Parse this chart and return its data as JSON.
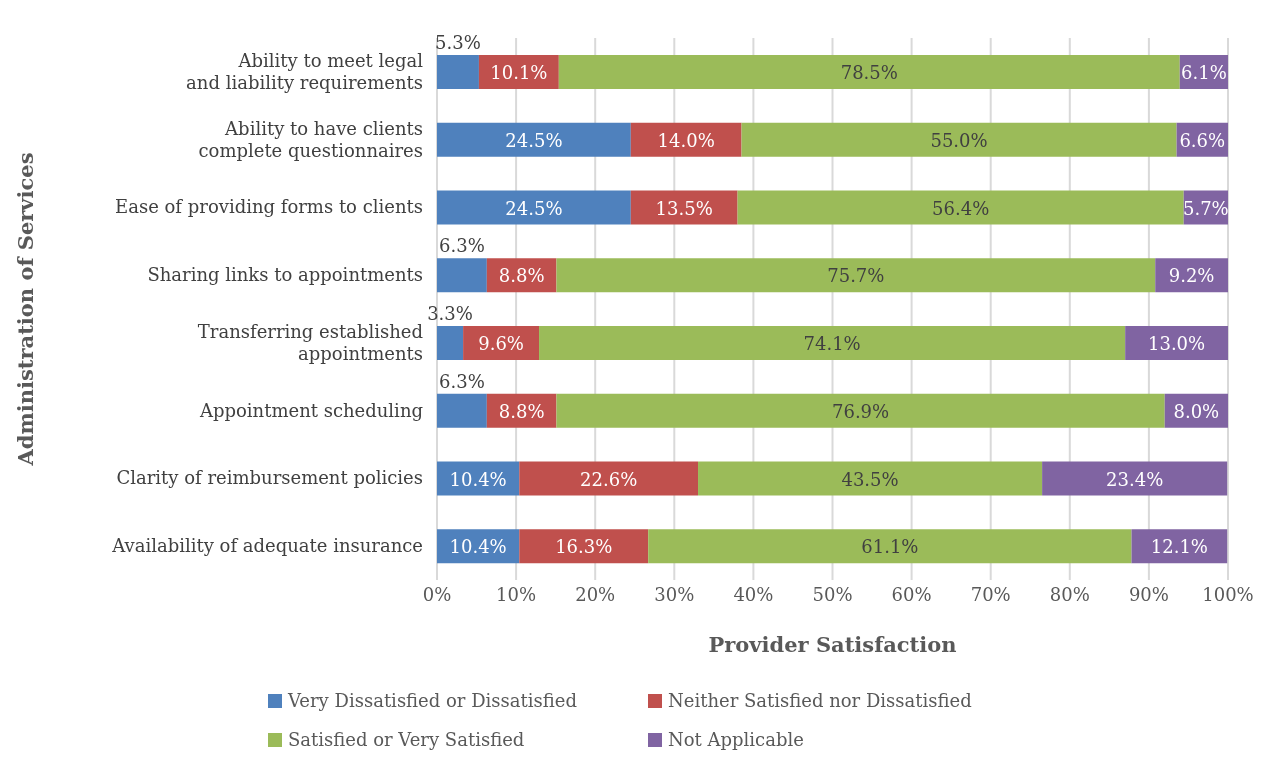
{
  "chart_data": {
    "type": "bar",
    "orientation": "horizontal",
    "stacked": true,
    "xlabel": "Provider Satisfaction",
    "ylabel": "Administration of Services",
    "categories": [
      "Ability to meet legal and liability requirements",
      "Ability to have clients complete questionnaires",
      "Ease of providing forms to clients",
      "Sharing links to appointments",
      "Transferring established appointments",
      "Appointment scheduling",
      "Clarity of reimbursement policies",
      "Availability of adequate insurance"
    ],
    "series": [
      {
        "name": "Very Dissatisfied or Dissatisfied",
        "color": "#4f81bd",
        "values": [
          5.3,
          24.5,
          24.5,
          6.3,
          3.3,
          6.3,
          10.4,
          10.4
        ],
        "value_labels": [
          "5.3%",
          "24.5%",
          "24.5%",
          "6.3%",
          "3.3%",
          "6.3%",
          "10.4%",
          "10.4%"
        ]
      },
      {
        "name": "Neither Satisfied nor Dissatisfied",
        "color": "#c0504d",
        "values": [
          10.1,
          14.0,
          13.5,
          8.8,
          9.6,
          8.8,
          22.6,
          16.3
        ],
        "value_labels": [
          "10.1%",
          "14.0%",
          "13.5%",
          "8.8%",
          "9.6%",
          "8.8%",
          "22.6%",
          "16.3%"
        ]
      },
      {
        "name": "Satisfied or Very Satisfied",
        "color": "#9bbb59",
        "values": [
          78.5,
          55.0,
          56.4,
          75.7,
          74.1,
          76.9,
          43.5,
          61.1
        ],
        "value_labels": [
          "78.5%",
          "55.0%",
          "56.4%",
          "75.7%",
          "74.1%",
          "76.9%",
          "43.5%",
          "61.1%"
        ]
      },
      {
        "name": "Not Applicable",
        "color": "#8064a2",
        "values": [
          6.1,
          6.6,
          5.7,
          9.2,
          13.0,
          8.0,
          23.4,
          12.1
        ],
        "value_labels": [
          "6.1%",
          "6.6%",
          "5.7%",
          "9.2%",
          "13.0%",
          "8.0%",
          "23.4%",
          "12.1%"
        ]
      }
    ],
    "xlim": [
      0,
      100
    ],
    "xticks": [
      {
        "value": 0,
        "label": "0%"
      },
      {
        "value": 10,
        "label": "10%"
      },
      {
        "value": 20,
        "label": "20%"
      },
      {
        "value": 30,
        "label": "30%"
      },
      {
        "value": 40,
        "label": "40%"
      },
      {
        "value": 50,
        "label": "50%"
      },
      {
        "value": 60,
        "label": "60%"
      },
      {
        "value": 70,
        "label": "70%"
      },
      {
        "value": 80,
        "label": "80%"
      },
      {
        "value": 90,
        "label": "90%"
      },
      {
        "value": 100,
        "label": "100%"
      }
    ],
    "grid": "x",
    "legend": "bottom"
  }
}
